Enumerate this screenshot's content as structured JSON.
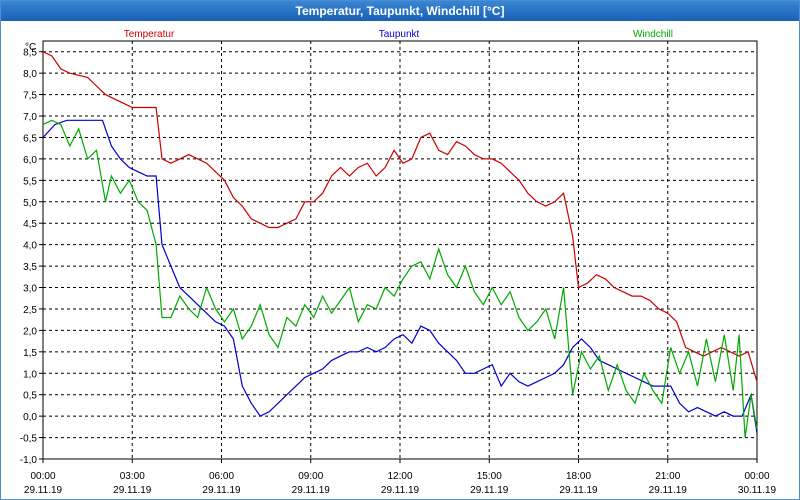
{
  "window": {
    "title": "Temperatur, Taupunkt, Windchill [°C]"
  },
  "chart_data": {
    "type": "line",
    "title": "Temperatur, Taupunkt, Windchill [°C]",
    "ylabel": "°C",
    "xlabel": "",
    "ylim": [
      -1.0,
      8.75
    ],
    "xlim": [
      0,
      24
    ],
    "grid": true,
    "legend_position": "top",
    "y_ticks": [
      "-1,0",
      "-0,5",
      "0,0",
      "0,5",
      "1,0",
      "1,5",
      "2,0",
      "2,5",
      "3,0",
      "3,5",
      "4,0",
      "4,5",
      "5,0",
      "5,5",
      "6,0",
      "6,5",
      "7,0",
      "7,5",
      "8,0",
      "8,5"
    ],
    "y_tick_values": [
      -1,
      -0.5,
      0,
      0.5,
      1,
      1.5,
      2,
      2.5,
      3,
      3.5,
      4,
      4.5,
      5,
      5.5,
      6,
      6.5,
      7,
      7.5,
      8,
      8.5
    ],
    "x_ticks": [
      {
        "time": "00:00",
        "date": "29.11.19",
        "hour": 0
      },
      {
        "time": "03:00",
        "date": "29.11.19",
        "hour": 3
      },
      {
        "time": "06:00",
        "date": "29.11.19",
        "hour": 6
      },
      {
        "time": "09:00",
        "date": "29.11.19",
        "hour": 9
      },
      {
        "time": "12:00",
        "date": "29.11.19",
        "hour": 12
      },
      {
        "time": "15:00",
        "date": "29.11.19",
        "hour": 15
      },
      {
        "time": "18:00",
        "date": "29.11.19",
        "hour": 18
      },
      {
        "time": "21:00",
        "date": "29.11.19",
        "hour": 21
      },
      {
        "time": "00:00",
        "date": "30.11.19",
        "hour": 24
      }
    ],
    "series": [
      {
        "name": "Temperatur",
        "color": "#cc0000",
        "x": [
          0,
          0.3,
          0.6,
          0.9,
          1.2,
          1.5,
          1.8,
          2.1,
          2.4,
          2.7,
          3.0,
          3.3,
          3.6,
          3.8,
          4.0,
          4.3,
          4.6,
          4.9,
          5.2,
          5.5,
          5.8,
          6.1,
          6.4,
          6.7,
          7.0,
          7.3,
          7.6,
          7.9,
          8.2,
          8.5,
          8.8,
          9.1,
          9.4,
          9.7,
          10.0,
          10.3,
          10.6,
          10.9,
          11.2,
          11.5,
          11.8,
          12.1,
          12.4,
          12.7,
          13.0,
          13.3,
          13.6,
          13.9,
          14.2,
          14.5,
          14.8,
          15.1,
          15.4,
          15.7,
          16.0,
          16.3,
          16.6,
          16.9,
          17.2,
          17.5,
          17.8,
          18.0,
          18.3,
          18.6,
          18.9,
          19.2,
          19.5,
          19.8,
          20.1,
          20.4,
          20.7,
          21.0,
          21.3,
          21.6,
          21.9,
          22.2,
          22.5,
          22.8,
          23.1,
          23.4,
          23.7,
          24.0
        ],
        "values": [
          8.5,
          8.4,
          8.1,
          8.0,
          7.95,
          7.9,
          7.7,
          7.5,
          7.4,
          7.3,
          7.2,
          7.2,
          7.2,
          7.2,
          6.0,
          5.9,
          6.0,
          6.1,
          6.0,
          5.9,
          5.7,
          5.5,
          5.1,
          4.9,
          4.6,
          4.5,
          4.4,
          4.4,
          4.5,
          4.6,
          5.0,
          5.0,
          5.2,
          5.6,
          5.8,
          5.6,
          5.8,
          5.9,
          5.6,
          5.8,
          6.2,
          5.9,
          6.0,
          6.5,
          6.6,
          6.2,
          6.1,
          6.4,
          6.3,
          6.1,
          6.0,
          6.0,
          5.9,
          5.7,
          5.5,
          5.2,
          5.0,
          4.9,
          5.0,
          5.2,
          4.2,
          3.0,
          3.1,
          3.3,
          3.2,
          3.0,
          2.9,
          2.8,
          2.8,
          2.7,
          2.5,
          2.4,
          2.2,
          1.6,
          1.5,
          1.4,
          1.5,
          1.6,
          1.5,
          1.4,
          1.5,
          0.8
        ]
      },
      {
        "name": "Taupunkt",
        "color": "#0000cc",
        "x": [
          0,
          0.4,
          0.8,
          1.2,
          1.6,
          2.0,
          2.3,
          2.6,
          2.9,
          3.2,
          3.5,
          3.8,
          4.0,
          4.3,
          4.6,
          4.9,
          5.2,
          5.5,
          5.8,
          6.1,
          6.4,
          6.7,
          7.0,
          7.3,
          7.6,
          7.9,
          8.2,
          8.5,
          8.8,
          9.1,
          9.4,
          9.7,
          10.0,
          10.3,
          10.6,
          10.9,
          11.2,
          11.5,
          11.8,
          12.1,
          12.4,
          12.7,
          13.0,
          13.3,
          13.6,
          13.9,
          14.2,
          14.5,
          14.8,
          15.1,
          15.4,
          15.7,
          16.0,
          16.3,
          16.6,
          16.9,
          17.2,
          17.5,
          17.8,
          18.1,
          18.4,
          18.7,
          19.0,
          19.3,
          19.6,
          19.9,
          20.2,
          20.5,
          20.8,
          21.1,
          21.4,
          21.7,
          22.0,
          22.3,
          22.6,
          22.9,
          23.2,
          23.5,
          23.8,
          24.0
        ],
        "values": [
          6.5,
          6.8,
          6.9,
          6.9,
          6.9,
          6.9,
          6.3,
          6.0,
          5.8,
          5.7,
          5.6,
          5.6,
          4.0,
          3.5,
          3.0,
          2.8,
          2.6,
          2.4,
          2.2,
          2.1,
          1.8,
          0.7,
          0.3,
          0.0,
          0.1,
          0.3,
          0.5,
          0.7,
          0.9,
          1.0,
          1.1,
          1.3,
          1.4,
          1.5,
          1.5,
          1.6,
          1.5,
          1.6,
          1.8,
          1.9,
          1.7,
          2.1,
          2.0,
          1.7,
          1.5,
          1.3,
          1.0,
          1.0,
          1.1,
          1.2,
          0.7,
          1.0,
          0.8,
          0.7,
          0.8,
          0.9,
          1.0,
          1.2,
          1.6,
          1.8,
          1.6,
          1.3,
          1.2,
          1.1,
          1.0,
          0.9,
          0.8,
          0.7,
          0.7,
          0.7,
          0.3,
          0.1,
          0.2,
          0.1,
          0.0,
          0.1,
          0.0,
          0.0,
          0.5,
          -0.4
        ]
      },
      {
        "name": "Windchill",
        "color": "#00aa00",
        "x": [
          0,
          0.3,
          0.6,
          0.9,
          1.2,
          1.5,
          1.8,
          2.1,
          2.3,
          2.6,
          2.9,
          3.2,
          3.5,
          3.8,
          4.0,
          4.3,
          4.6,
          4.9,
          5.2,
          5.5,
          5.8,
          6.1,
          6.4,
          6.7,
          7.0,
          7.3,
          7.6,
          7.9,
          8.2,
          8.5,
          8.8,
          9.1,
          9.4,
          9.7,
          10.0,
          10.3,
          10.6,
          10.9,
          11.2,
          11.5,
          11.8,
          12.1,
          12.4,
          12.7,
          13.0,
          13.3,
          13.6,
          13.9,
          14.2,
          14.5,
          14.8,
          15.1,
          15.4,
          15.7,
          16.0,
          16.3,
          16.6,
          16.9,
          17.2,
          17.5,
          17.8,
          18.1,
          18.4,
          18.7,
          19.0,
          19.3,
          19.6,
          19.9,
          20.2,
          20.5,
          20.8,
          21.1,
          21.4,
          21.7,
          22.0,
          22.3,
          22.6,
          22.9,
          23.2,
          23.4,
          23.6,
          23.8,
          24.0
        ],
        "values": [
          6.8,
          6.9,
          6.8,
          6.3,
          6.7,
          6.0,
          6.2,
          5.0,
          5.6,
          5.2,
          5.5,
          5.0,
          4.8,
          4.0,
          2.3,
          2.3,
          2.8,
          2.5,
          2.3,
          3.0,
          2.5,
          2.2,
          2.5,
          1.8,
          2.1,
          2.6,
          1.9,
          1.6,
          2.3,
          2.1,
          2.6,
          2.3,
          2.8,
          2.4,
          2.7,
          3.0,
          2.2,
          2.6,
          2.5,
          3.0,
          2.8,
          3.2,
          3.5,
          3.6,
          3.2,
          3.9,
          3.3,
          3.0,
          3.5,
          2.9,
          2.6,
          3.0,
          2.6,
          2.9,
          2.3,
          2.0,
          2.2,
          2.5,
          1.8,
          3.0,
          0.5,
          1.5,
          1.1,
          1.4,
          0.6,
          1.2,
          0.6,
          0.3,
          1.0,
          0.6,
          0.3,
          1.6,
          1.0,
          1.5,
          0.7,
          1.8,
          0.8,
          1.9,
          0.6,
          1.9,
          -0.5,
          0.5,
          -0.3
        ]
      }
    ]
  }
}
